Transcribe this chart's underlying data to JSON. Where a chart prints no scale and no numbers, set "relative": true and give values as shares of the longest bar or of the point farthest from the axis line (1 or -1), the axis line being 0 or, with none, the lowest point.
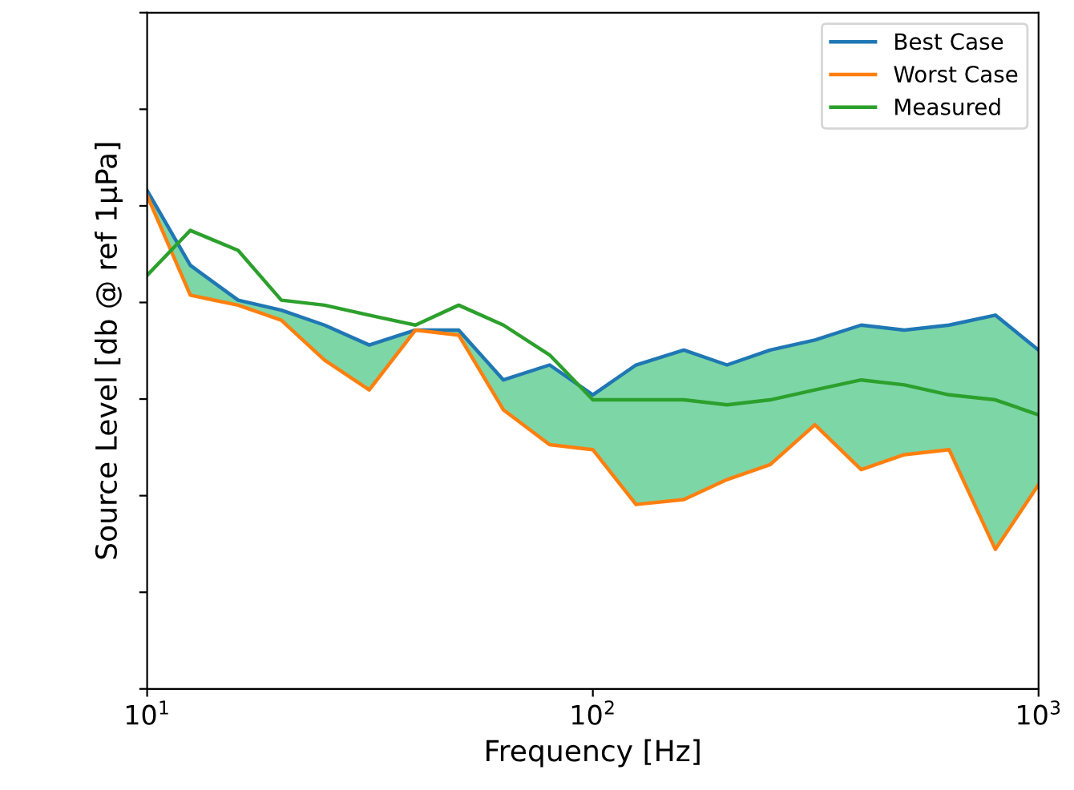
{
  "chart_data": {
    "type": "line",
    "relative": true,
    "log": "x",
    "xlabel": "Frequency [Hz]",
    "ylabel": "Source Level [db @ ref 1μPa]",
    "x": [
      10,
      12.5,
      16,
      20,
      25,
      31.5,
      40,
      50,
      63,
      80,
      100,
      125,
      160,
      200,
      250,
      315,
      400,
      500,
      630,
      800,
      1000
    ],
    "xlim": [
      10,
      1000
    ],
    "xticks": [
      {
        "value": 10,
        "label": "10$^{1}$"
      },
      {
        "value": 100,
        "label": "10$^{2}$"
      },
      {
        "value": 1000,
        "label": "10$^{3}$"
      }
    ],
    "tick_labels": "x",
    "grid": false,
    "legend": "top right",
    "marker": "none",
    "line_style": "solid",
    "series": [
      {
        "name": "Best Case",
        "color": "#1f77b4",
        "values": [
          1.0,
          0.85,
          0.78,
          0.76,
          0.73,
          0.69,
          0.72,
          0.72,
          0.62,
          0.65,
          0.59,
          0.65,
          0.68,
          0.65,
          0.68,
          0.7,
          0.73,
          0.72,
          0.73,
          0.75,
          0.68
        ],
        "lower": [
          0.99,
          0.79,
          0.77,
          0.74,
          0.66,
          0.6,
          0.72,
          0.71,
          0.56,
          0.49,
          0.48,
          0.37,
          0.38,
          0.42,
          0.45,
          0.53,
          0.44,
          0.47,
          0.48,
          0.28,
          0.41
        ],
        "upper": [
          1.0,
          0.85,
          0.78,
          0.76,
          0.73,
          0.69,
          0.72,
          0.72,
          0.62,
          0.65,
          0.59,
          0.65,
          0.68,
          0.65,
          0.68,
          0.7,
          0.73,
          0.72,
          0.73,
          0.75,
          0.68
        ]
      },
      {
        "name": "Worst Case",
        "color": "#ff7f0e",
        "values": [
          0.99,
          0.79,
          0.77,
          0.74,
          0.66,
          0.6,
          0.72,
          0.71,
          0.56,
          0.49,
          0.48,
          0.37,
          0.38,
          0.42,
          0.45,
          0.53,
          0.44,
          0.47,
          0.48,
          0.28,
          0.41
        ]
      },
      {
        "name": "Measured",
        "color": "#2ca02c",
        "values": [
          0.83,
          0.92,
          0.88,
          0.78,
          0.77,
          0.75,
          0.73,
          0.77,
          0.73,
          0.67,
          0.58,
          0.58,
          0.58,
          0.57,
          0.58,
          0.6,
          0.62,
          0.61,
          0.59,
          0.58,
          0.55
        ]
      }
    ]
  }
}
